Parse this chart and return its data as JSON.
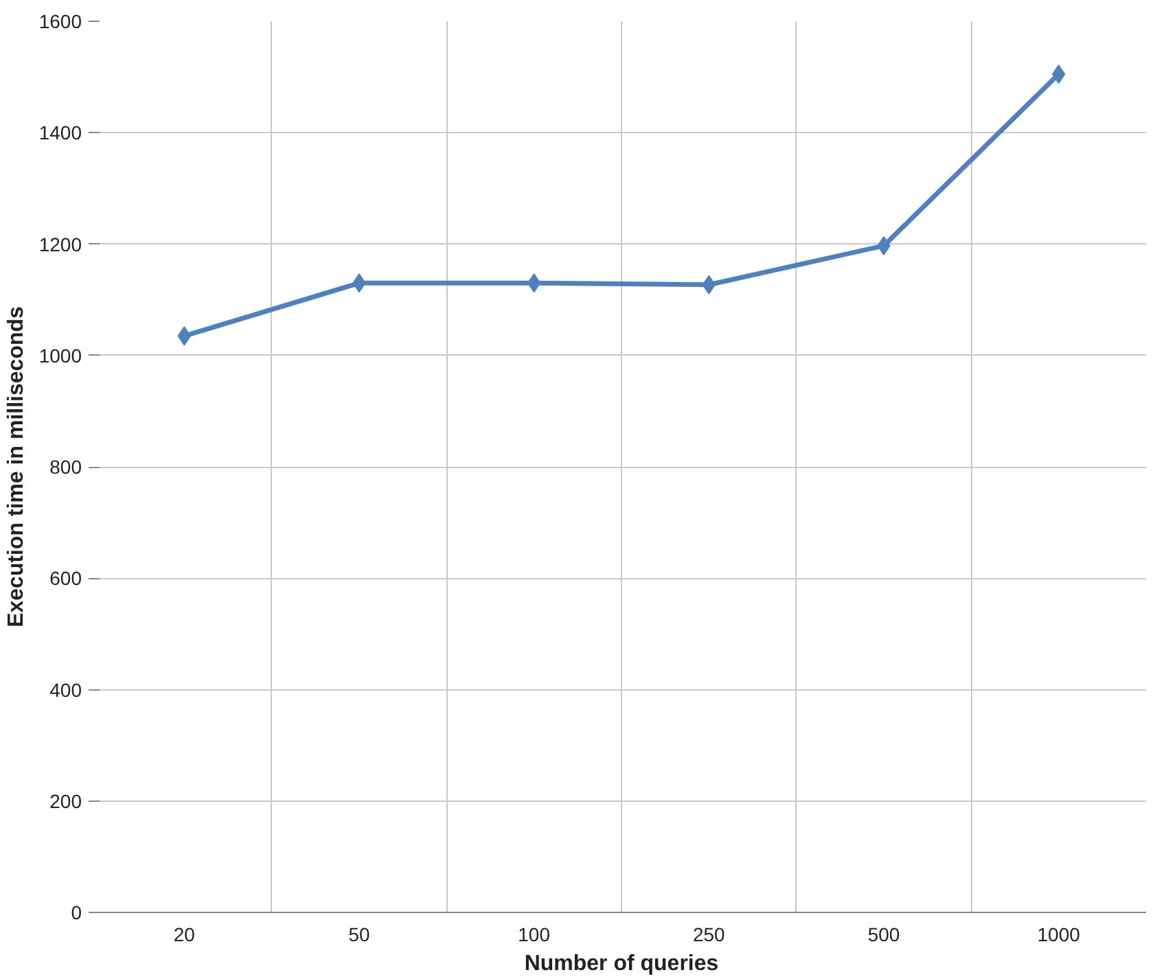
{
  "chart_data": {
    "type": "line",
    "xlabel": "Number of queries",
    "ylabel": "Execution time in milliseconds",
    "categories": [
      "20",
      "50",
      "100",
      "250",
      "500",
      "1000"
    ],
    "series": [
      {
        "color": "#4f81bd",
        "values": [
          1035,
          1130,
          1130,
          1127,
          1197,
          1505
        ]
      }
    ],
    "ylim": [
      0,
      1600
    ],
    "yticks": [
      0,
      200,
      400,
      600,
      800,
      1000,
      1200,
      1400,
      1600
    ],
    "grid": true,
    "marker": "diamond",
    "line_style": "solid"
  }
}
